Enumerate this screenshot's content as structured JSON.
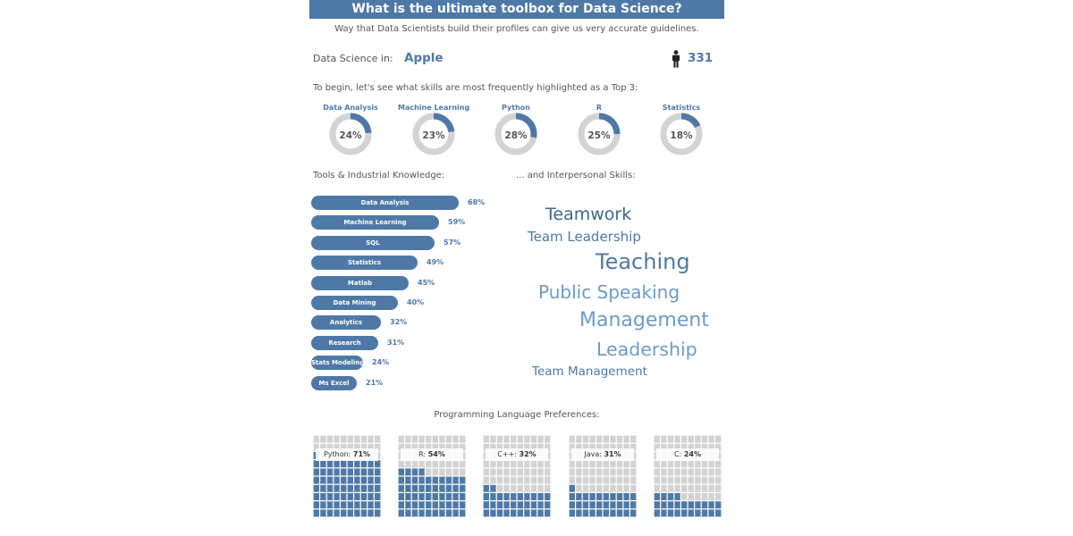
{
  "header": {
    "title": "What is the ultimate toolbox for Data Science?",
    "subtitle": "Way that Data Scientists build their profiles can give us very accurate guidelines."
  },
  "filter": {
    "label": "Data Science in:",
    "company": "Apple",
    "count": "331",
    "count_icon": "person-icon"
  },
  "top3": {
    "intro": "To begin, let's see what skills are most frequently highlighted as a Top 3:"
  },
  "sections": {
    "tools_title": "Tools & Industrial Knowledge:",
    "interpersonal_title": "... and Interpersonal Skills:",
    "programming_title": "Programming Language Preferences:"
  },
  "colors": {
    "accent": "#4e79a7",
    "track": "#d3d3d3",
    "word_dark": "#3f6690",
    "word_mid": "#4e79a7",
    "word_light": "#6b9bc8"
  },
  "chart_data": [
    {
      "type": "pie",
      "categories": [
        "Data Analysis",
        "Machine Learning",
        "Python",
        "R",
        "Statistics"
      ],
      "values": [
        24,
        23,
        28,
        25,
        18
      ],
      "value_labels": [
        "24%",
        "23%",
        "28%",
        "25%",
        "18%"
      ]
    },
    {
      "type": "bar",
      "categories": [
        "Data Analysis",
        "Machine Learning",
        "SQL",
        "Statistics",
        "Matlab",
        "Data Mining",
        "Analytics",
        "Research",
        "Stats Modeling",
        "Ms Excel"
      ],
      "values": [
        68,
        59,
        57,
        49,
        45,
        40,
        32,
        31,
        24,
        21
      ],
      "value_labels": [
        "68%",
        "59%",
        "57%",
        "49%",
        "45%",
        "40%",
        "32%",
        "31%",
        "24%",
        "21%"
      ]
    },
    {
      "type": "table",
      "words": [
        {
          "text": "Teamwork",
          "weight": 0.62
        },
        {
          "text": "Team Leadership",
          "weight": 0.45
        },
        {
          "text": "Teaching",
          "weight": 0.95
        },
        {
          "text": "Public Speaking",
          "weight": 0.8
        },
        {
          "text": "Management",
          "weight": 0.85
        },
        {
          "text": "Leadership",
          "weight": 0.78
        },
        {
          "text": "Team Management",
          "weight": 0.4
        }
      ]
    },
    {
      "type": "bar",
      "categories": [
        "Python",
        "R",
        "C++",
        "Java",
        "C"
      ],
      "values": [
        71,
        54,
        32,
        31,
        24
      ],
      "value_labels": [
        "71%",
        "54%",
        "32%",
        "31%",
        "24%"
      ]
    }
  ]
}
